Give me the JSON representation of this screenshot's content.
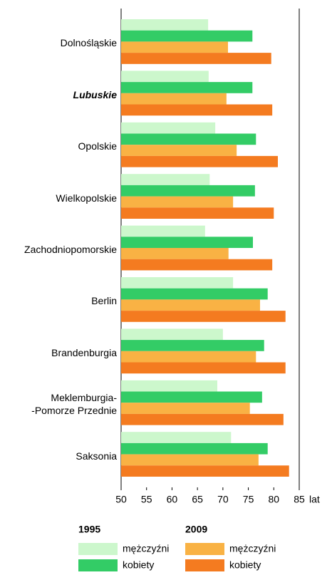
{
  "chart_data": {
    "type": "barh",
    "categories": [
      "Dolnośląskie",
      "Lubuskie",
      "Opolskie",
      "Wielkopolskie",
      "Zachodniopomorskie",
      "Berlin",
      "Brandenburgia",
      "Meklemburgia-\n-Pomorze Przednie",
      "Saksonia"
    ],
    "highlight_index": 1,
    "series": [
      {
        "name": "mężczyźni",
        "group": "1995",
        "color": "#ccf7cc",
        "values": [
          67.1,
          67.2,
          68.5,
          67.4,
          66.5,
          72.0,
          70.0,
          68.9,
          71.6
        ]
      },
      {
        "name": "kobiety",
        "group": "1995",
        "color": "#33cc66",
        "values": [
          75.8,
          75.8,
          76.5,
          76.3,
          75.9,
          78.8,
          78.1,
          77.7,
          78.8
        ]
      },
      {
        "name": "mężczyźni",
        "group": "2009",
        "color": "#f9b244",
        "values": [
          71.0,
          70.7,
          72.7,
          72.0,
          71.1,
          77.3,
          76.5,
          75.3,
          77.0
        ]
      },
      {
        "name": "kobiety",
        "group": "2009",
        "color": "#f47b20",
        "values": [
          79.5,
          79.7,
          80.8,
          80.0,
          79.7,
          82.3,
          82.3,
          81.9,
          83.0
        ]
      }
    ],
    "xlabel": "lat",
    "xlim": [
      50,
      85
    ],
    "xticks": [
      50,
      55,
      60,
      65,
      70,
      75,
      80,
      85
    ]
  }
}
